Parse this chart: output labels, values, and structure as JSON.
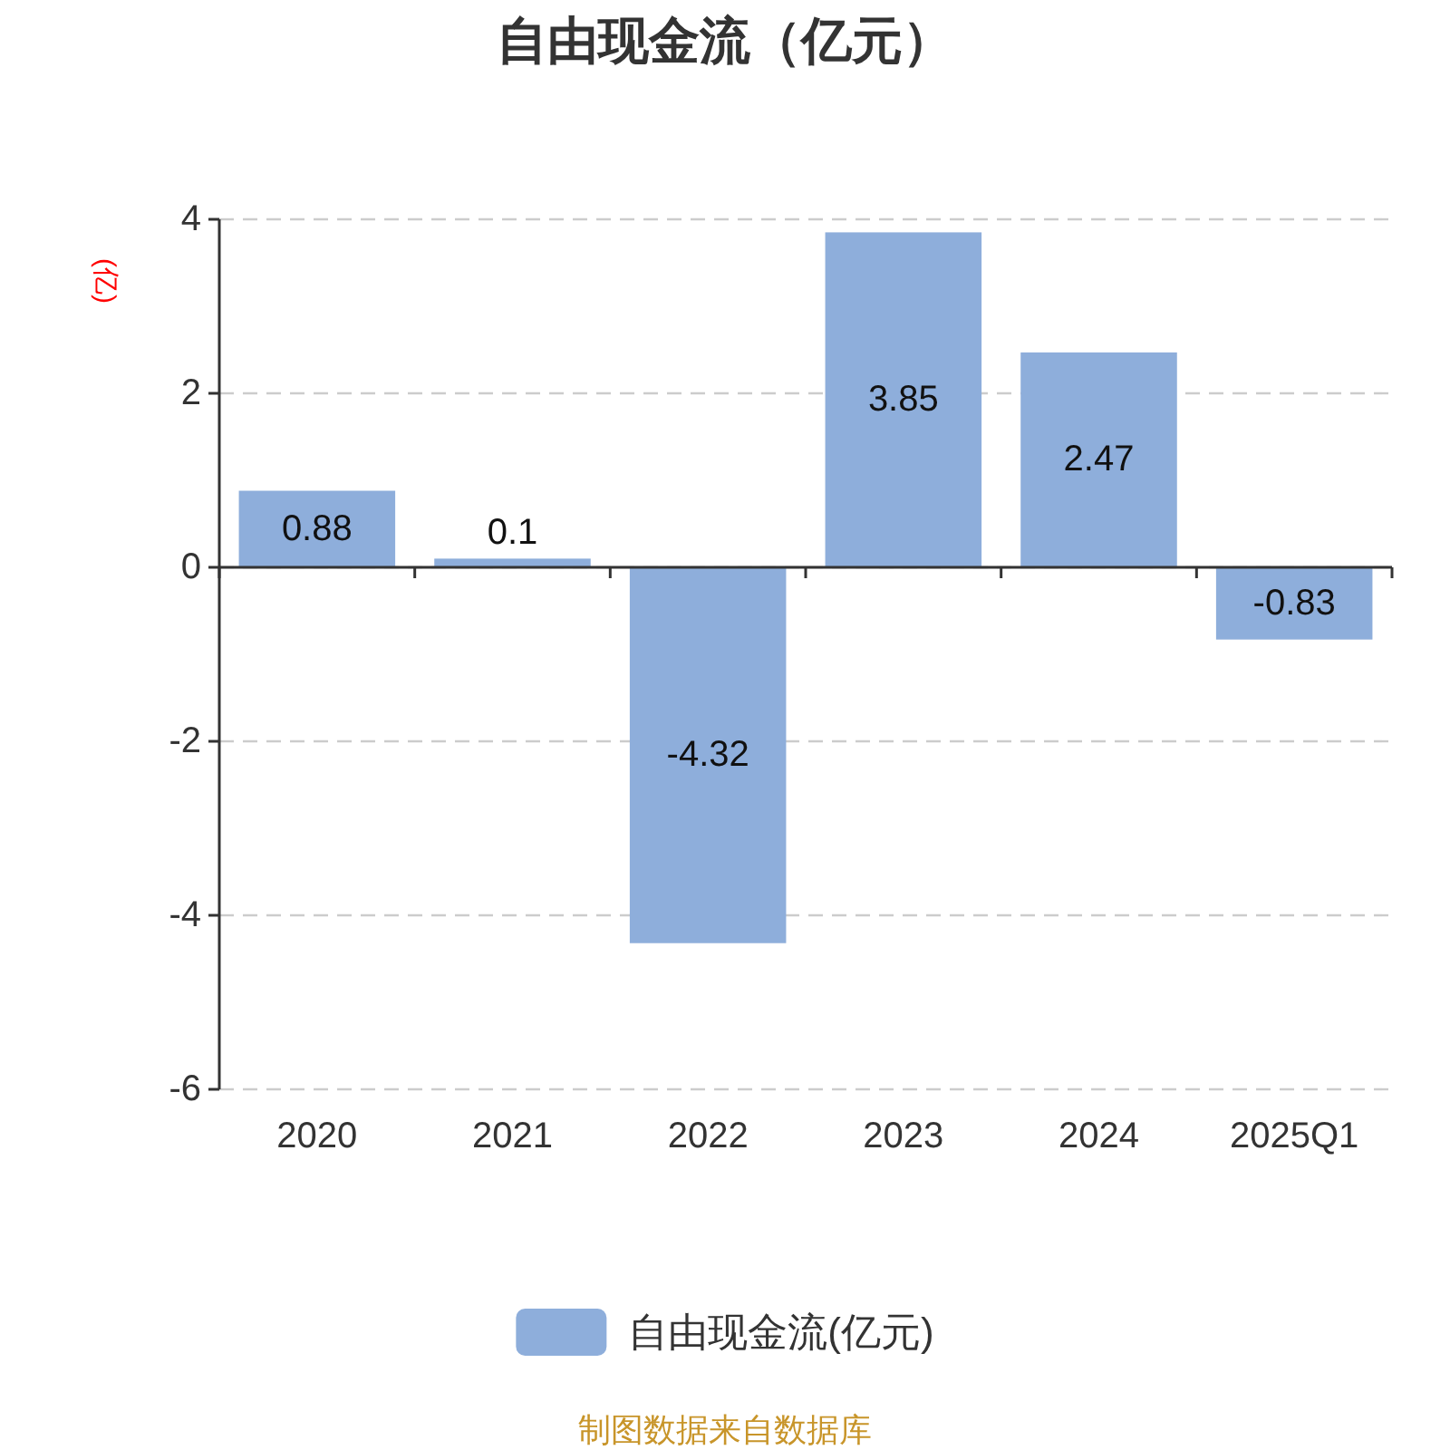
{
  "chart_data": {
    "type": "bar",
    "title": "自由现金流（亿元）",
    "ylabel": "(亿)",
    "categories": [
      "2020",
      "2021",
      "2022",
      "2023",
      "2024",
      "2025Q1"
    ],
    "series": [
      {
        "name": "自由现金流(亿元)",
        "color": "#8eaedb",
        "values": [
          0.88,
          0.1,
          -4.32,
          3.85,
          2.47,
          -0.83
        ]
      }
    ],
    "ylim": [
      -6,
      4
    ],
    "yticks": [
      -6,
      -4,
      -2,
      0,
      2,
      4
    ],
    "grid": "y",
    "legend": "bottom",
    "data_labels": true,
    "annotations": [
      "制图数据来自数据库"
    ]
  }
}
